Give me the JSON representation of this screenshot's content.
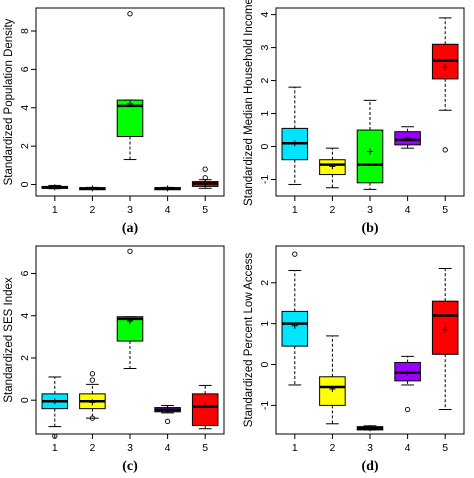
{
  "chart_data": [
    {
      "type": "box",
      "caption": "(a)",
      "ylabel": "Standardized Population Density",
      "categories": [
        "1",
        "2",
        "3",
        "4",
        "5"
      ],
      "ylim": [
        -0.6,
        9.2
      ],
      "yticks": [
        0,
        2,
        4,
        6,
        8
      ],
      "boxes": [
        {
          "category": "1",
          "color": "#00e5ff",
          "whisker_low": -0.22,
          "q1": -0.2,
          "median": -0.15,
          "q3": -0.1,
          "whisker_high": -0.05,
          "mean": -0.15,
          "outliers": []
        },
        {
          "category": "2",
          "color": "#ffff00",
          "whisker_low": -0.25,
          "q1": -0.23,
          "median": -0.2,
          "q3": -0.17,
          "whisker_high": -0.15,
          "mean": -0.2,
          "outliers": []
        },
        {
          "category": "3",
          "color": "#00ff00",
          "whisker_low": 1.3,
          "q1": 2.5,
          "median": 4.1,
          "q3": 4.4,
          "whisker_high": 4.4,
          "mean": 4.2,
          "outliers": [
            8.9
          ]
        },
        {
          "category": "4",
          "color": "#9900ff",
          "whisker_low": -0.25,
          "q1": -0.23,
          "median": -0.2,
          "q3": -0.17,
          "whisker_high": -0.15,
          "mean": -0.2,
          "outliers": []
        },
        {
          "category": "5",
          "color": "#ff0000",
          "whisker_low": -0.2,
          "q1": -0.1,
          "median": 0.05,
          "q3": 0.15,
          "whisker_high": 0.25,
          "mean": 0.05,
          "outliers": [
            0.35,
            0.8
          ]
        }
      ]
    },
    {
      "type": "box",
      "caption": "(b)",
      "ylabel": "Standardized Median Household Income",
      "categories": [
        "1",
        "2",
        "3",
        "4",
        "5"
      ],
      "ylim": [
        -1.5,
        4.2
      ],
      "yticks": [
        -1,
        0,
        1,
        2,
        3,
        4
      ],
      "boxes": [
        {
          "category": "1",
          "color": "#00e5ff",
          "whisker_low": -1.15,
          "q1": -0.4,
          "median": 0.1,
          "q3": 0.55,
          "whisker_high": 1.8,
          "mean": 0.1,
          "outliers": []
        },
        {
          "category": "2",
          "color": "#ffff00",
          "whisker_low": -1.25,
          "q1": -0.85,
          "median": -0.55,
          "q3": -0.4,
          "whisker_high": -0.05,
          "mean": -0.6,
          "outliers": []
        },
        {
          "category": "3",
          "color": "#00ff00",
          "whisker_low": -1.3,
          "q1": -1.1,
          "median": -0.55,
          "q3": 0.5,
          "whisker_high": 1.4,
          "mean": -0.15,
          "outliers": []
        },
        {
          "category": "4",
          "color": "#9900ff",
          "whisker_low": -0.05,
          "q1": 0.05,
          "median": 0.2,
          "q3": 0.45,
          "whisker_high": 0.6,
          "mean": 0.25,
          "outliers": []
        },
        {
          "category": "5",
          "color": "#ff0000",
          "whisker_low": 1.1,
          "q1": 2.05,
          "median": 2.6,
          "q3": 3.1,
          "whisker_high": 3.9,
          "mean": 2.4,
          "outliers": [
            -0.1
          ]
        }
      ]
    },
    {
      "type": "box",
      "caption": "(c)",
      "ylabel": "Standardized SES Index",
      "categories": [
        "1",
        "2",
        "3",
        "4",
        "5"
      ],
      "ylim": [
        -1.6,
        7.3
      ],
      "yticks": [
        0,
        2,
        4,
        6
      ],
      "boxes": [
        {
          "category": "1",
          "color": "#00e5ff",
          "whisker_low": -1.25,
          "q1": -0.4,
          "median": -0.05,
          "q3": 0.3,
          "whisker_high": 1.1,
          "mean": -0.05,
          "outliers": [
            -1.7
          ]
        },
        {
          "category": "2",
          "color": "#ffff00",
          "whisker_low": -0.85,
          "q1": -0.4,
          "median": -0.05,
          "q3": 0.3,
          "whisker_high": 0.75,
          "mean": -0.1,
          "outliers": [
            -0.85,
            0.95,
            1.25
          ]
        },
        {
          "category": "3",
          "color": "#00ff00",
          "whisker_low": 1.5,
          "q1": 2.8,
          "median": 3.85,
          "q3": 3.95,
          "whisker_high": 3.95,
          "mean": 3.75,
          "outliers": [
            7.05
          ]
        },
        {
          "category": "4",
          "color": "#9900ff",
          "whisker_low": -0.6,
          "q1": -0.55,
          "median": -0.45,
          "q3": -0.35,
          "whisker_high": -0.25,
          "mean": -0.45,
          "outliers": [
            -1.0
          ]
        },
        {
          "category": "5",
          "color": "#ff0000",
          "whisker_low": -1.35,
          "q1": -1.2,
          "median": -0.3,
          "q3": 0.3,
          "whisker_high": 0.7,
          "mean": -0.25,
          "outliers": []
        }
      ]
    },
    {
      "type": "box",
      "caption": "(d)",
      "ylabel": "Standardized Percent Low Access",
      "categories": [
        "1",
        "2",
        "3",
        "4",
        "5"
      ],
      "ylim": [
        -1.7,
        2.9
      ],
      "yticks": [
        -1,
        0,
        1,
        2
      ],
      "boxes": [
        {
          "category": "1",
          "color": "#00e5ff",
          "whisker_low": -0.5,
          "q1": 0.45,
          "median": 1.0,
          "q3": 1.3,
          "whisker_high": 2.3,
          "mean": 0.95,
          "outliers": [
            2.7
          ]
        },
        {
          "category": "2",
          "color": "#ffff00",
          "whisker_low": -1.45,
          "q1": -1.0,
          "median": -0.55,
          "q3": -0.3,
          "whisker_high": 0.7,
          "mean": -0.6,
          "outliers": []
        },
        {
          "category": "3",
          "color": "#00ff00",
          "whisker_low": -1.6,
          "q1": -1.6,
          "median": -1.56,
          "q3": -1.52,
          "whisker_high": -1.5,
          "mean": -1.56,
          "outliers": []
        },
        {
          "category": "4",
          "color": "#9900ff",
          "whisker_low": -0.5,
          "q1": -0.4,
          "median": -0.2,
          "q3": 0.05,
          "whisker_high": 0.2,
          "mean": -0.2,
          "outliers": [
            -1.1
          ]
        },
        {
          "category": "5",
          "color": "#ff0000",
          "whisker_low": -1.1,
          "q1": 0.25,
          "median": 1.2,
          "q3": 1.55,
          "whisker_high": 2.35,
          "mean": 0.85,
          "outliers": []
        }
      ]
    }
  ]
}
